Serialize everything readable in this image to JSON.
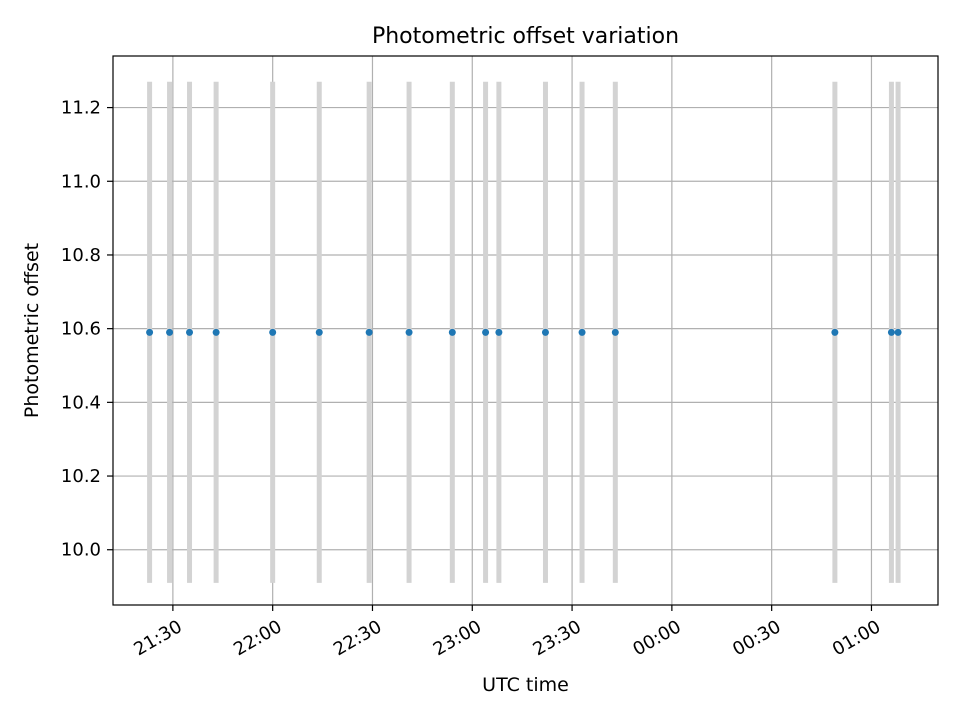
{
  "chart_data": {
    "type": "scatter",
    "title": "Photometric offset variation",
    "xlabel": "UTC time",
    "ylabel": "Photometric offset",
    "x_axis_type": "time",
    "xlim": [
      "21:12",
      "01:20"
    ],
    "ylim": [
      9.85,
      11.34
    ],
    "xticks": [
      "21:30",
      "22:00",
      "22:30",
      "23:00",
      "23:30",
      "00:00",
      "00:30",
      "01:00"
    ],
    "yticks": [
      "10.0",
      "10.2",
      "10.4",
      "10.6",
      "10.8",
      "11.0",
      "11.2"
    ],
    "grid": true,
    "series": [
      {
        "points": [
          {
            "x": "21:23",
            "y": 10.59,
            "err": 0.68
          },
          {
            "x": "21:29",
            "y": 10.59,
            "err": 0.68
          },
          {
            "x": "21:35",
            "y": 10.59,
            "err": 0.68
          },
          {
            "x": "21:43",
            "y": 10.59,
            "err": 0.68
          },
          {
            "x": "22:00",
            "y": 10.59,
            "err": 0.68
          },
          {
            "x": "22:14",
            "y": 10.59,
            "err": 0.68
          },
          {
            "x": "22:29",
            "y": 10.59,
            "err": 0.68
          },
          {
            "x": "22:41",
            "y": 10.59,
            "err": 0.68
          },
          {
            "x": "22:54",
            "y": 10.59,
            "err": 0.68
          },
          {
            "x": "23:04",
            "y": 10.59,
            "err": 0.68
          },
          {
            "x": "23:08",
            "y": 10.59,
            "err": 0.68
          },
          {
            "x": "23:22",
            "y": 10.59,
            "err": 0.68
          },
          {
            "x": "23:33",
            "y": 10.59,
            "err": 0.68
          },
          {
            "x": "23:43",
            "y": 10.59,
            "err": 0.68
          },
          {
            "x": "00:49",
            "y": 10.59,
            "err": 0.68
          },
          {
            "x": "01:06",
            "y": 10.59,
            "err": 0.68
          },
          {
            "x": "01:08",
            "y": 10.59,
            "err": 0.68
          }
        ]
      }
    ],
    "colors": {
      "point": "#1f77b4",
      "errorbar": "#d3d3d3",
      "grid": "#b0b0b0",
      "axis": "#000000"
    }
  }
}
